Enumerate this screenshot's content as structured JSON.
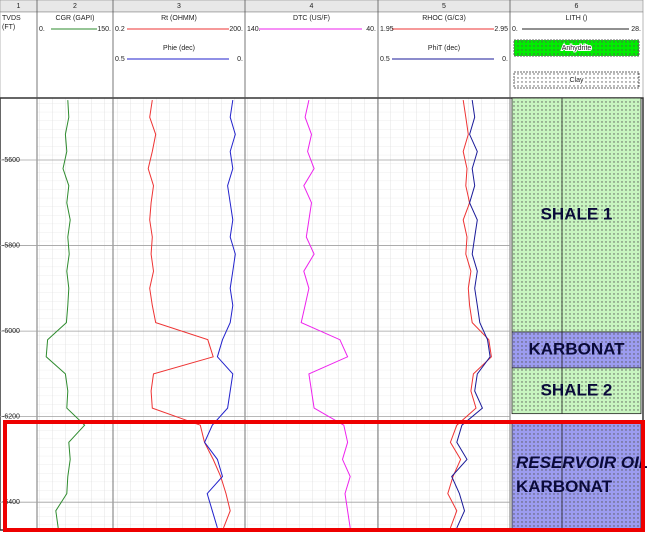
{
  "chart_data": {
    "type": "well-log",
    "column_numbers": [
      "1",
      "2",
      "3",
      "4",
      "5",
      "6"
    ],
    "depth_label": [
      "TVDS",
      "(FT)"
    ],
    "ylim": [
      -5455,
      -6465
    ],
    "yticks": [
      -5600,
      -5800,
      -6000,
      -6200,
      -6400
    ],
    "depth": [
      -5460,
      -5500,
      -5540,
      -5580,
      -5620,
      -5660,
      -5700,
      -5740,
      -5780,
      -5820,
      -5860,
      -5900,
      -5940,
      -5980,
      -6020,
      -6060,
      -6100,
      -6140,
      -6180,
      -6220,
      -6260,
      -6300,
      -6340,
      -6380,
      -6420,
      -6460
    ],
    "tracks": [
      {
        "series": [
          {
            "name": "CGR (GAPI)",
            "color": "#2e8b2e",
            "log": false,
            "xlim": [
              {
                "value": 0,
                "label": "0."
              },
              {
                "value": 150,
                "label": "150."
              }
            ],
            "values": [
              60,
              62,
              55,
              58,
              50,
              62,
              58,
              65,
              60,
              63,
              58,
              62,
              60,
              57,
              18,
              15,
              55,
              60,
              58,
              95,
              62,
              65,
              60,
              58,
              35,
              40
            ]
          }
        ]
      },
      {
        "series": [
          {
            "name": "Rt (OHMM)",
            "color": "#ee3333",
            "log": true,
            "xlim": [
              {
                "value": 0.2,
                "label": "0.2"
              },
              {
                "value": 200,
                "label": "200."
              }
            ],
            "values": [
              1.5,
              1.3,
              1.8,
              1.5,
              1.2,
              1.6,
              1.4,
              1.3,
              1.5,
              1.4,
              1.6,
              1.3,
              1.5,
              1.8,
              30,
              40,
              1.6,
              1.4,
              1.5,
              20,
              25,
              40,
              60,
              80,
              100,
              70
            ]
          },
          {
            "name": "Phie (dec)",
            "color": "#2222cc",
            "log": false,
            "xlim": [
              {
                "value": 0.5,
                "label": "0.5"
              },
              {
                "value": 0,
                "label": "0."
              }
            ],
            "values": [
              0.04,
              0.05,
              0.03,
              0.05,
              0.04,
              0.06,
              0.05,
              0.04,
              0.05,
              0.03,
              0.04,
              0.05,
              0.04,
              0.05,
              0.08,
              0.1,
              0.04,
              0.05,
              0.06,
              0.12,
              0.15,
              0.1,
              0.08,
              0.14,
              0.12,
              0.1
            ]
          }
        ]
      },
      {
        "series": [
          {
            "name": "DTC (US/F)",
            "color": "#ee22ee",
            "log": false,
            "xlim": [
              {
                "value": 140,
                "label": "140."
              },
              {
                "value": 40,
                "label": "40."
              }
            ],
            "values": [
              92,
              95,
              90,
              93,
              88,
              96,
              90,
              92,
              94,
              88,
              96,
              92,
              95,
              98,
              68,
              62,
              92,
              90,
              88,
              65,
              62,
              66,
              60,
              64,
              62,
              60
            ]
          }
        ]
      },
      {
        "series": [
          {
            "name": "RHOC (G/C3)",
            "color": "#ee3333",
            "log": false,
            "xlim": [
              {
                "value": 1.95,
                "label": "1.95"
              },
              {
                "value": 2.95,
                "label": "2.95"
              }
            ],
            "values": [
              2.6,
              2.62,
              2.64,
              2.6,
              2.63,
              2.62,
              2.65,
              2.6,
              2.63,
              2.62,
              2.66,
              2.64,
              2.65,
              2.67,
              2.8,
              2.82,
              2.68,
              2.66,
              2.7,
              2.55,
              2.5,
              2.58,
              2.52,
              2.48,
              2.55,
              2.5
            ]
          },
          {
            "name": "PhiT (dec)",
            "color": "#1a1a99",
            "log": false,
            "xlim": [
              {
                "value": 0.5,
                "label": "0.5"
              },
              {
                "value": 0,
                "label": "0."
              }
            ],
            "values": [
              0.14,
              0.13,
              0.15,
              0.12,
              0.14,
              0.13,
              0.15,
              0.12,
              0.13,
              0.14,
              0.12,
              0.13,
              0.12,
              0.11,
              0.08,
              0.07,
              0.12,
              0.13,
              0.1,
              0.18,
              0.2,
              0.16,
              0.22,
              0.19,
              0.17,
              0.2
            ]
          }
        ]
      }
    ],
    "lithology": {
      "name": "LITH ()",
      "xlim": [
        {
          "value": 0,
          "label": "0."
        },
        {
          "value": 28,
          "label": "28."
        }
      ],
      "legend": [
        {
          "name": "Anhydrite",
          "color": "#00ee00"
        },
        {
          "name": "Clay",
          "color": "#ffffff"
        }
      ],
      "zones": [
        {
          "labels": [
            "SHALE 1"
          ],
          "top": -5455,
          "base": -6002,
          "color": "#c8f5c0"
        },
        {
          "labels": [
            "KARBONAT"
          ],
          "top": -6002,
          "base": -6086,
          "color": "#9c9cf0"
        },
        {
          "labels": [
            "SHALE 2"
          ],
          "top": -6086,
          "base": -6193,
          "color": "#c8f5c0"
        },
        {
          "labels": [
            "RESERVOIR OIL",
            "KARBONAT"
          ],
          "top": -6210,
          "base": -6465,
          "color": "#9c9cf0"
        }
      ]
    }
  }
}
